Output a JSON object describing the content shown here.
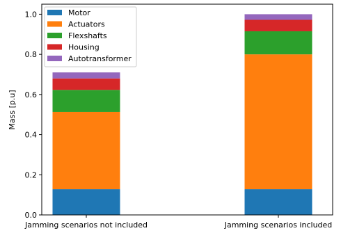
{
  "chart_data": {
    "type": "bar",
    "stacked": true,
    "categories": [
      "Jamming scenarios not included",
      "Jamming scenarios included"
    ],
    "series": [
      {
        "name": "Motor",
        "color": "#1f77b4",
        "values": [
          0.128,
          0.128
        ]
      },
      {
        "name": "Actuators",
        "color": "#ff7f0e",
        "values": [
          0.385,
          0.672
        ]
      },
      {
        "name": "Flexshafts",
        "color": "#2ca02c",
        "values": [
          0.11,
          0.115
        ]
      },
      {
        "name": "Housing",
        "color": "#d62728",
        "values": [
          0.057,
          0.057
        ]
      },
      {
        "name": "Autotransformer",
        "color": "#9467bd",
        "values": [
          0.03,
          0.028
        ]
      }
    ],
    "ylabel": "Mass [p.u]",
    "xlabel": "",
    "ylim": [
      0,
      1.05
    ],
    "yticks": [
      "0.0",
      "0.2",
      "0.4",
      "0.6",
      "0.8",
      "1.0"
    ],
    "grid": false,
    "legend_position": "top-left"
  }
}
